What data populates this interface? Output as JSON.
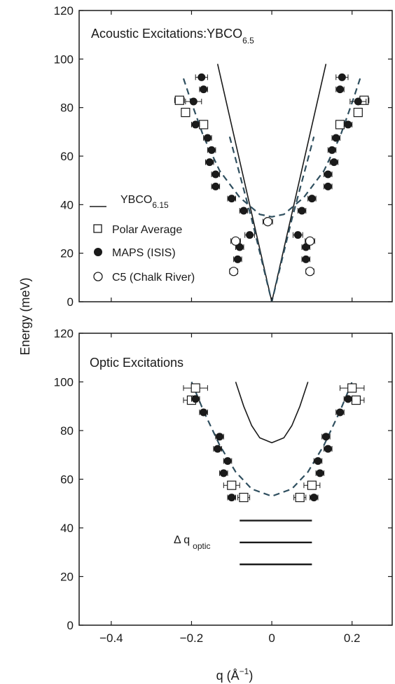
{
  "y_axis_label": "Energy (meV)",
  "x_axis_label": "q (Å",
  "x_axis_label_sup": "−1",
  "x_axis_label_close": ")",
  "chart_data": [
    {
      "type": "scatter",
      "title": "Acoustic Excitations:YBCO",
      "title_sub": "6.5",
      "xlim": [
        -0.48,
        0.3
      ],
      "ylim": [
        0,
        120
      ],
      "yticks": [
        0,
        20,
        40,
        60,
        80,
        100,
        120
      ],
      "xticks": [
        -0.4,
        -0.2,
        0,
        0.2
      ],
      "xtick_labels_shown": false,
      "legend_position": "bottom-left",
      "legend": [
        {
          "marker": "line",
          "label": "YBCO",
          "sub": "6.15"
        },
        {
          "marker": "open-square",
          "label": "Polar Average"
        },
        {
          "marker": "filled-circle",
          "label": "MAPS (ISIS)"
        },
        {
          "marker": "open-circle",
          "label": "C5 (Chalk River)"
        }
      ],
      "series": [
        {
          "name": "YBCO6.15",
          "style": "solid-line",
          "segments": [
            [
              [
                -0.135,
                98
              ],
              [
                0,
                0
              ],
              [
                0.135,
                98
              ]
            ]
          ]
        },
        {
          "name": "fit",
          "style": "dashed-line",
          "segments": [
            [
              [
                -0.22,
                92
              ],
              [
                -0.2,
                82
              ],
              [
                -0.17,
                68
              ],
              [
                -0.13,
                54
              ],
              [
                -0.08,
                43
              ],
              [
                -0.03,
                36
              ],
              [
                0,
                35
              ],
              [
                0.03,
                36
              ],
              [
                0.08,
                43
              ],
              [
                0.13,
                54
              ],
              [
                0.17,
                68
              ],
              [
                0.2,
                82
              ],
              [
                0.22,
                92
              ]
            ],
            [
              [
                -0.105,
                68
              ],
              [
                -0.05,
                34
              ],
              [
                0,
                0
              ],
              [
                0.05,
                34
              ],
              [
                0.105,
                68
              ]
            ]
          ]
        },
        {
          "name": "Polar Average",
          "marker": "open-square",
          "points": [
            {
              "x": -0.23,
              "y": 83,
              "xerr": 0.012
            },
            {
              "x": -0.215,
              "y": 78,
              "xerr": 0.01
            },
            {
              "x": -0.17,
              "y": 73,
              "xerr": 0.01
            },
            {
              "x": 0.23,
              "y": 83,
              "xerr": 0.012
            },
            {
              "x": 0.215,
              "y": 78,
              "xerr": 0.01
            },
            {
              "x": 0.17,
              "y": 73,
              "xerr": 0.01
            }
          ]
        },
        {
          "name": "MAPS (ISIS)",
          "marker": "filled-circle",
          "points": [
            {
              "x": -0.175,
              "y": 92.5,
              "xerr": 0.015
            },
            {
              "x": -0.17,
              "y": 87.5,
              "xerr": 0.01
            },
            {
              "x": -0.195,
              "y": 82.5,
              "xerr": 0.02
            },
            {
              "x": -0.19,
              "y": 73,
              "xerr": 0.01
            },
            {
              "x": -0.16,
              "y": 67.5,
              "xerr": 0.01
            },
            {
              "x": -0.15,
              "y": 62.5,
              "xerr": 0.01
            },
            {
              "x": -0.155,
              "y": 57.5,
              "xerr": 0.01
            },
            {
              "x": -0.14,
              "y": 52.5,
              "xerr": 0.01
            },
            {
              "x": -0.14,
              "y": 47.5,
              "xerr": 0.01
            },
            {
              "x": -0.1,
              "y": 42.5,
              "xerr": 0.01
            },
            {
              "x": -0.07,
              "y": 37.5,
              "xerr": 0.01
            },
            {
              "x": -0.055,
              "y": 27.5,
              "xerr": 0.012
            },
            {
              "x": -0.08,
              "y": 22.5,
              "xerr": 0.01
            },
            {
              "x": -0.085,
              "y": 17.5,
              "xerr": 0.01
            },
            {
              "x": 0.175,
              "y": 92.5,
              "xerr": 0.015
            },
            {
              "x": 0.17,
              "y": 87.5,
              "xerr": 0.01
            },
            {
              "x": 0.215,
              "y": 82.5,
              "xerr": 0.02
            },
            {
              "x": 0.19,
              "y": 73,
              "xerr": 0.01
            },
            {
              "x": 0.16,
              "y": 67.5,
              "xerr": 0.01
            },
            {
              "x": 0.15,
              "y": 62.5,
              "xerr": 0.01
            },
            {
              "x": 0.155,
              "y": 57.5,
              "xerr": 0.01
            },
            {
              "x": 0.14,
              "y": 52.5,
              "xerr": 0.01
            },
            {
              "x": 0.14,
              "y": 47.5,
              "xerr": 0.01
            },
            {
              "x": 0.1,
              "y": 42.5,
              "xerr": 0.01
            },
            {
              "x": 0.075,
              "y": 37.5,
              "xerr": 0.01
            },
            {
              "x": 0.065,
              "y": 27.5,
              "xerr": 0.012
            },
            {
              "x": 0.085,
              "y": 22.5,
              "xerr": 0.01
            },
            {
              "x": 0.085,
              "y": 17.5,
              "xerr": 0.01
            }
          ]
        },
        {
          "name": "C5 (Chalk River)",
          "marker": "open-circle",
          "points": [
            {
              "x": -0.01,
              "y": 33,
              "xerr": 0.012
            },
            {
              "x": -0.09,
              "y": 25,
              "xerr": 0.012
            },
            {
              "x": -0.095,
              "y": 12.5,
              "xerr": 0.01
            },
            {
              "x": 0.095,
              "y": 25,
              "xerr": 0.012
            },
            {
              "x": 0.095,
              "y": 12.5,
              "xerr": 0.01
            }
          ]
        }
      ]
    },
    {
      "type": "scatter",
      "title": "Optic Excitations",
      "xlim": [
        -0.48,
        0.3
      ],
      "ylim": [
        0,
        120
      ],
      "yticks": [
        0,
        20,
        40,
        60,
        80,
        100,
        120
      ],
      "xticks": [
        -0.4,
        -0.2,
        0,
        0.2
      ],
      "xtick_labels": [
        "−0.4",
        "−0.2",
        "0",
        "0.2"
      ],
      "annotation": {
        "text": "Δ q",
        "sub": "optic"
      },
      "resolution_bars": [
        {
          "y": 43,
          "x0": -0.08,
          "x1": 0.1
        },
        {
          "y": 34,
          "x0": -0.08,
          "x1": 0.1
        },
        {
          "y": 25,
          "x0": -0.08,
          "x1": 0.1
        }
      ],
      "series": [
        {
          "name": "solid-curve",
          "style": "solid-line",
          "segments": [
            [
              [
                -0.09,
                100
              ],
              [
                -0.07,
                90
              ],
              [
                -0.05,
                82
              ],
              [
                -0.03,
                77
              ],
              [
                0,
                75
              ],
              [
                0.03,
                77
              ],
              [
                0.05,
                82
              ],
              [
                0.07,
                90
              ],
              [
                0.09,
                100
              ]
            ]
          ]
        },
        {
          "name": "fit",
          "style": "dashed-line",
          "segments": [
            [
              [
                -0.2,
                100
              ],
              [
                -0.17,
                88
              ],
              [
                -0.13,
                74
              ],
              [
                -0.09,
                63
              ],
              [
                -0.05,
                56
              ],
              [
                0,
                53
              ],
              [
                0.05,
                56
              ],
              [
                0.09,
                63
              ],
              [
                0.13,
                74
              ],
              [
                0.17,
                88
              ],
              [
                0.2,
                100
              ]
            ]
          ]
        },
        {
          "name": "Polar Average",
          "marker": "open-square",
          "points": [
            {
              "x": -0.19,
              "y": 97.5,
              "xerr": 0.03
            },
            {
              "x": -0.2,
              "y": 92.5,
              "xerr": 0.02
            },
            {
              "x": -0.1,
              "y": 57.5,
              "xerr": 0.02
            },
            {
              "x": -0.07,
              "y": 52.5,
              "xerr": 0.015
            },
            {
              "x": 0.2,
              "y": 97.5,
              "xerr": 0.03
            },
            {
              "x": 0.21,
              "y": 92.5,
              "xerr": 0.02
            },
            {
              "x": 0.1,
              "y": 57.5,
              "xerr": 0.02
            },
            {
              "x": 0.07,
              "y": 52.5,
              "xerr": 0.015
            }
          ]
        },
        {
          "name": "MAPS (ISIS)",
          "marker": "filled-circle",
          "points": [
            {
              "x": -0.19,
              "y": 93,
              "xerr": 0.01
            },
            {
              "x": -0.17,
              "y": 87.5,
              "xerr": 0.01
            },
            {
              "x": -0.13,
              "y": 77.5,
              "xerr": 0.01
            },
            {
              "x": -0.135,
              "y": 72.5,
              "xerr": 0.01
            },
            {
              "x": -0.11,
              "y": 67.5,
              "xerr": 0.01
            },
            {
              "x": -0.12,
              "y": 62.5,
              "xerr": 0.01
            },
            {
              "x": -0.1,
              "y": 52.5,
              "xerr": 0.01
            },
            {
              "x": 0.19,
              "y": 93,
              "xerr": 0.01
            },
            {
              "x": 0.17,
              "y": 87.5,
              "xerr": 0.01
            },
            {
              "x": 0.135,
              "y": 77.5,
              "xerr": 0.01
            },
            {
              "x": 0.14,
              "y": 72.5,
              "xerr": 0.01
            },
            {
              "x": 0.115,
              "y": 67.5,
              "xerr": 0.01
            },
            {
              "x": 0.12,
              "y": 62.5,
              "xerr": 0.01
            },
            {
              "x": 0.105,
              "y": 52.5,
              "xerr": 0.01
            }
          ]
        }
      ]
    }
  ]
}
